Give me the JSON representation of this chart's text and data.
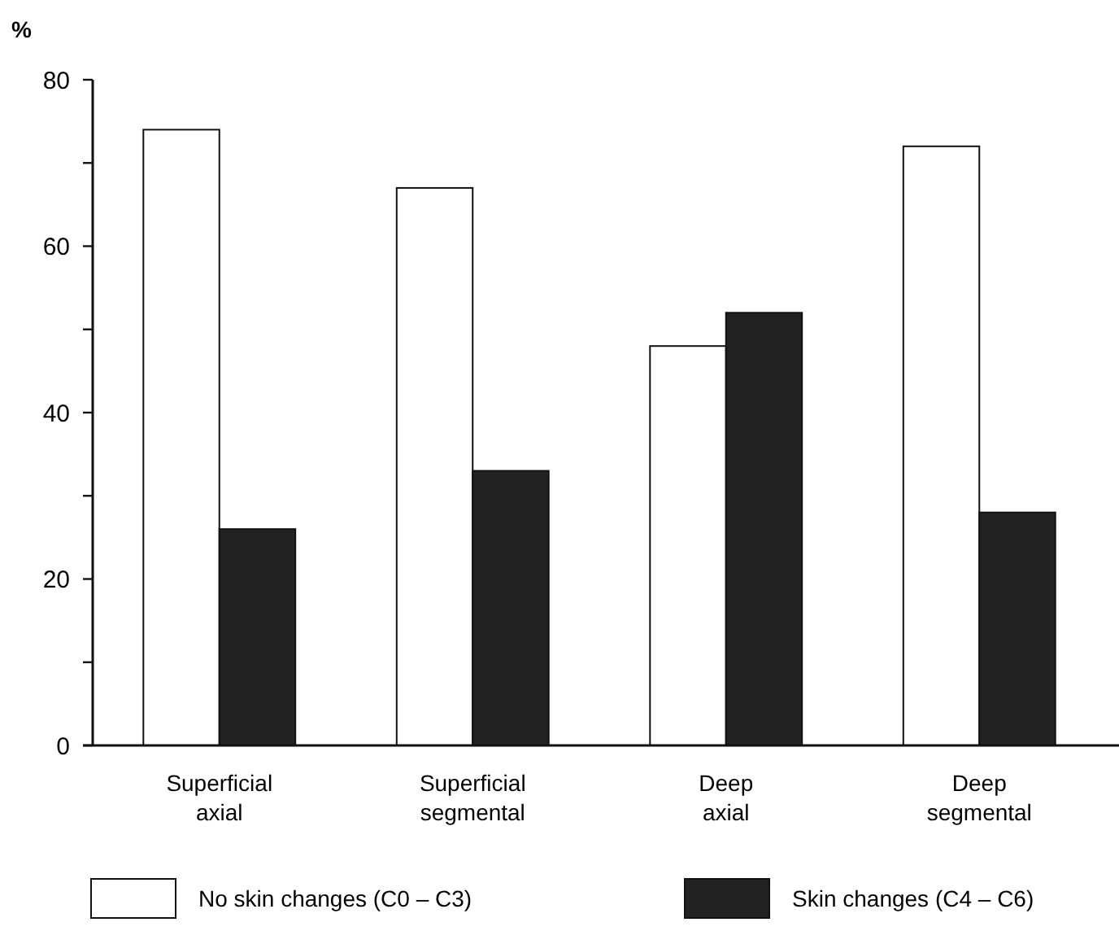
{
  "chart_data": {
    "type": "bar",
    "ylabel": "%",
    "categories": [
      "Superficial axial",
      "Superficial segmental",
      "Deep axial",
      "Deep segmental"
    ],
    "series": [
      {
        "name": "No skin changes (C0 – C3)",
        "color": "#ffffff",
        "values": [
          74,
          67,
          48,
          72
        ]
      },
      {
        "name": "Skin changes (C4 – C6)",
        "color": "#222222",
        "values": [
          26,
          33,
          52,
          28
        ]
      }
    ],
    "ylim": [
      0,
      80
    ],
    "yticks": [
      0,
      {
        "value": 10,
        "label": null
      },
      20,
      {
        "value": 30,
        "label": null
      },
      40,
      {
        "value": 50,
        "label": null
      },
      60,
      {
        "value": 70,
        "label": null
      },
      80
    ],
    "grid": false,
    "legend": "bottom"
  }
}
